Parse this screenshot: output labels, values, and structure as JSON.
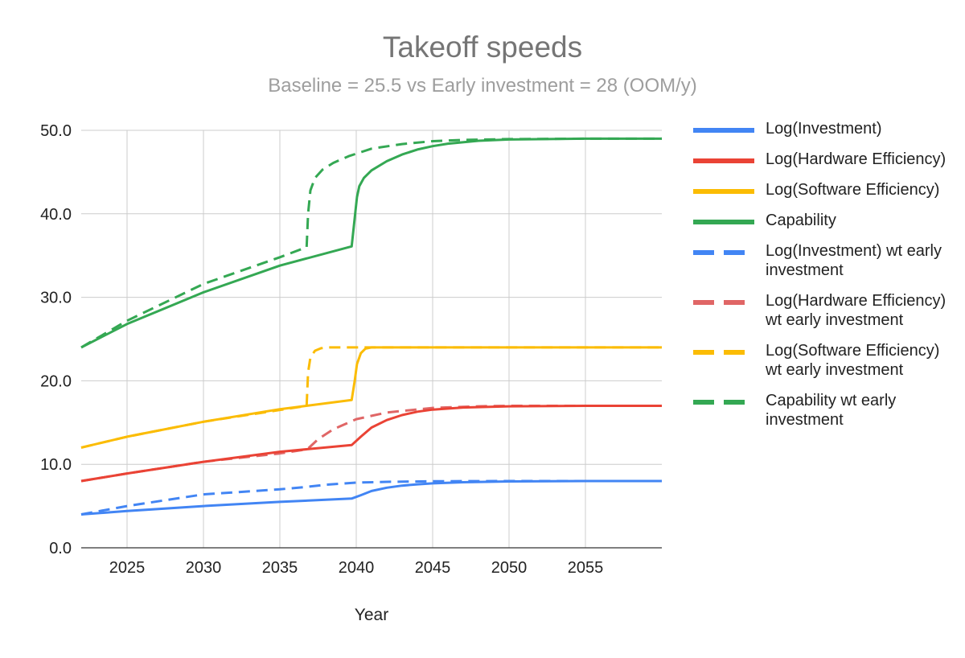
{
  "chart_data": {
    "type": "line",
    "title": "Takeoff speeds",
    "subtitle": "Baseline = 25.5 vs Early investment = 28 (OOM/y)",
    "xlabel": "Year",
    "ylabel": "",
    "xlim": [
      2022,
      2060
    ],
    "ylim": [
      0,
      50
    ],
    "grid": true,
    "legend_position": "right",
    "xticks": [
      2025,
      2030,
      2035,
      2040,
      2045,
      2050,
      2055
    ],
    "xtick_labels": [
      "2025",
      "2030",
      "2035",
      "2040",
      "2045",
      "2050",
      "2055"
    ],
    "yticks": [
      0,
      10,
      20,
      30,
      40,
      50
    ],
    "ytick_labels": [
      "0.0",
      "10.0",
      "20.0",
      "30.0",
      "40.0",
      "50.0"
    ],
    "series": [
      {
        "name": "Log(Investment)",
        "color": "#4285f4",
        "dash": false,
        "x": [
          2022,
          2025,
          2030,
          2035,
          2039.7,
          2040.3,
          2041,
          2042,
          2043,
          2044,
          2045,
          2047,
          2050,
          2055,
          2060
        ],
        "y": [
          4.0,
          4.4,
          5.0,
          5.5,
          5.9,
          6.3,
          6.8,
          7.2,
          7.45,
          7.6,
          7.72,
          7.85,
          7.95,
          8.0,
          8.0
        ]
      },
      {
        "name": "Log(Hardware Efficiency)",
        "color": "#ea4335",
        "dash": false,
        "x": [
          2022,
          2025,
          2030,
          2035,
          2039.7,
          2040.3,
          2041,
          2042,
          2043,
          2044,
          2045,
          2047,
          2050,
          2055,
          2060
        ],
        "y": [
          8.0,
          8.9,
          10.3,
          11.5,
          12.3,
          13.3,
          14.4,
          15.3,
          15.9,
          16.3,
          16.55,
          16.8,
          16.95,
          17.0,
          17.0
        ]
      },
      {
        "name": "Log(Software Efficiency)",
        "color": "#fbbc04",
        "dash": false,
        "x": [
          2022,
          2025,
          2030,
          2035,
          2039.7,
          2039.9,
          2040.05,
          2040.3,
          2040.6,
          2041,
          2045,
          2050,
          2055,
          2060
        ],
        "y": [
          12.0,
          13.3,
          15.1,
          16.6,
          17.7,
          20.0,
          22.0,
          23.3,
          23.85,
          24.0,
          24.0,
          24.0,
          24.0,
          24.0
        ]
      },
      {
        "name": "Capability",
        "color": "#34a853",
        "dash": false,
        "x": [
          2022,
          2025,
          2030,
          2035,
          2039.7,
          2039.9,
          2040.05,
          2040.2,
          2040.5,
          2041,
          2042,
          2043,
          2044,
          2045,
          2046,
          2048,
          2050,
          2055,
          2060
        ],
        "y": [
          24.0,
          26.8,
          30.6,
          33.8,
          36.1,
          39.5,
          42.0,
          43.3,
          44.3,
          45.2,
          46.3,
          47.1,
          47.7,
          48.1,
          48.4,
          48.75,
          48.9,
          49.0,
          49.0
        ]
      },
      {
        "name": "Log(Investment) wt early investment",
        "color": "#4285f4",
        "dash": true,
        "x": [
          2022,
          2025,
          2030,
          2035,
          2036.8,
          2038,
          2040,
          2042,
          2045,
          2050,
          2055,
          2060
        ],
        "y": [
          4.0,
          5.0,
          6.4,
          7.0,
          7.3,
          7.55,
          7.8,
          7.9,
          7.97,
          8.0,
          8.0,
          8.0
        ]
      },
      {
        "name": "Log(Hardware Efficiency) wt early investment",
        "color": "#e06666",
        "dash": true,
        "x": [
          2022,
          2025,
          2030,
          2035,
          2036.8,
          2037.5,
          2038.5,
          2040,
          2042,
          2045,
          2048,
          2050,
          2055,
          2060
        ],
        "y": [
          8.0,
          8.9,
          10.3,
          11.3,
          11.8,
          13.0,
          14.2,
          15.4,
          16.2,
          16.75,
          16.95,
          17.0,
          17.0,
          17.0
        ]
      },
      {
        "name": "Log(Software Efficiency) wt early investment",
        "color": "#fbbc04",
        "dash": true,
        "x": [
          2022,
          2025,
          2030,
          2035,
          2036.75,
          2036.85,
          2037.0,
          2037.3,
          2037.7,
          2038.2,
          2040,
          2045,
          2050,
          2055,
          2060
        ],
        "y": [
          12.0,
          13.3,
          15.1,
          16.5,
          17.0,
          21.0,
          22.8,
          23.6,
          23.9,
          24.0,
          24.0,
          24.0,
          24.0,
          24.0,
          24.0
        ]
      },
      {
        "name": "Capability wt early investment",
        "color": "#34a853",
        "dash": true,
        "x": [
          2022,
          2025,
          2030,
          2035,
          2036.75,
          2036.85,
          2037.0,
          2037.3,
          2037.8,
          2038.5,
          2039.5,
          2041,
          2043,
          2045,
          2047,
          2050,
          2055,
          2060
        ],
        "y": [
          24.0,
          27.2,
          31.6,
          34.8,
          36.0,
          40.0,
          42.8,
          44.3,
          45.3,
          46.1,
          46.9,
          47.8,
          48.35,
          48.7,
          48.85,
          48.95,
          49.0,
          49.0
        ]
      }
    ]
  }
}
